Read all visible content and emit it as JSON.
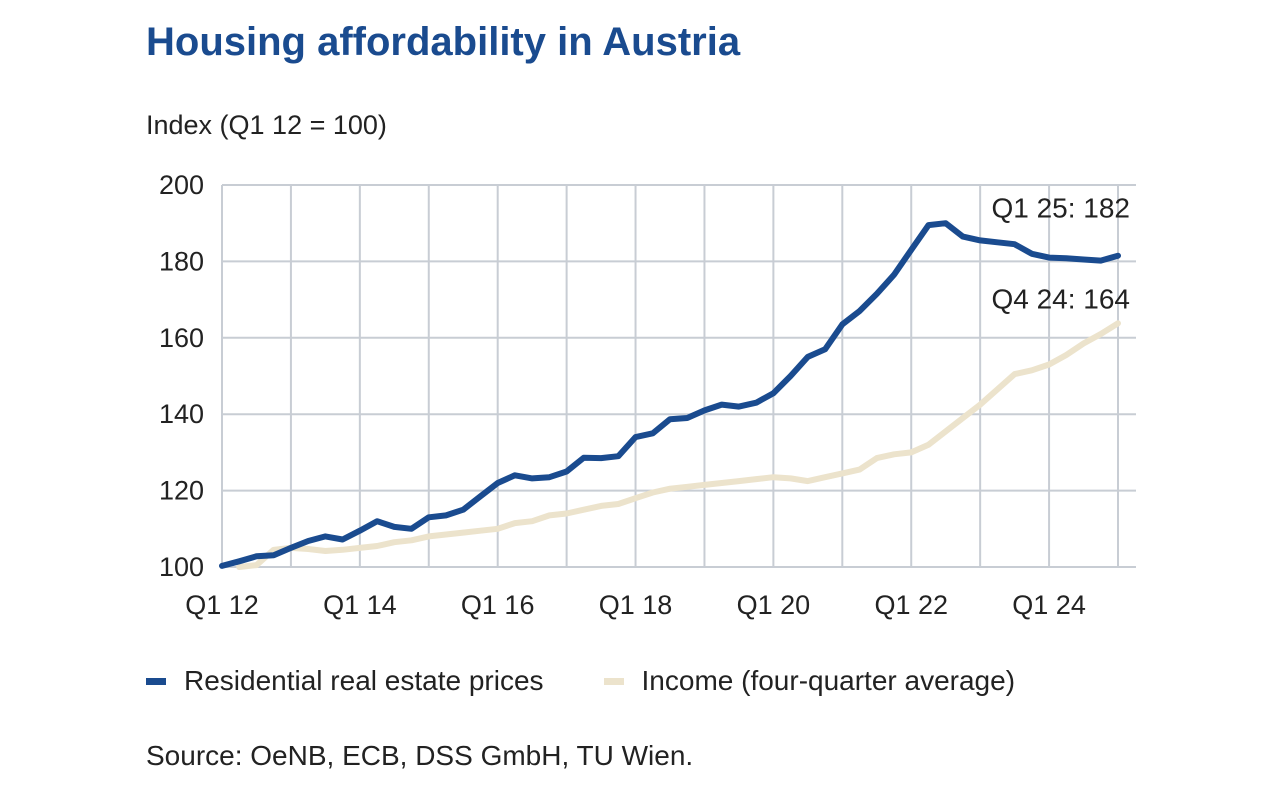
{
  "colors": {
    "title": "#1a4b8f",
    "grid": "#c8cdd4",
    "text": "#222222"
  },
  "chart_data": {
    "type": "line",
    "title": "Housing affordability in Austria",
    "ylabel": "Index (Q1 12 = 100)",
    "xlabel": "",
    "ylim": [
      100,
      200
    ],
    "yticks": [
      100,
      120,
      140,
      160,
      180,
      200
    ],
    "x_count": 53,
    "xticks": [
      {
        "i": 0,
        "label": "Q1 12"
      },
      {
        "i": 8,
        "label": "Q1 14"
      },
      {
        "i": 16,
        "label": "Q1 16"
      },
      {
        "i": 24,
        "label": "Q1 18"
      },
      {
        "i": 32,
        "label": "Q1 20"
      },
      {
        "i": 40,
        "label": "Q1 22"
      },
      {
        "i": 48,
        "label": "Q1 24"
      }
    ],
    "grid": true,
    "series": [
      {
        "name": "Residential real estate prices",
        "color": "#1a4b8f",
        "values": [
          100.3,
          101.5,
          102.8,
          103.1,
          105.0,
          106.8,
          108.0,
          107.2,
          109.5,
          112.0,
          110.5,
          110.0,
          113.0,
          113.5,
          115.0,
          118.5,
          122.0,
          124.0,
          123.2,
          123.5,
          125.0,
          128.6,
          128.5,
          129.0,
          134.0,
          135.0,
          138.7,
          139.0,
          141.0,
          142.5,
          142.0,
          143.0,
          145.5,
          150.0,
          155.0,
          157.0,
          163.5,
          167.0,
          171.5,
          176.5,
          183.0,
          189.5,
          190.0,
          186.5,
          185.5,
          185.0,
          184.5,
          182.0,
          181.0,
          180.8,
          180.5,
          180.2,
          181.5
        ]
      },
      {
        "name": "Income (four-quarter average)",
        "color": "#ece3cc",
        "values": [
          null,
          100.0,
          100.5,
          104.5,
          105.0,
          104.7,
          104.2,
          104.5,
          105.0,
          105.5,
          106.5,
          107.0,
          108.0,
          108.5,
          109.0,
          109.5,
          110.0,
          111.5,
          112.0,
          113.5,
          114.0,
          115.0,
          116.0,
          116.5,
          118.0,
          119.5,
          120.5,
          121.0,
          121.5,
          122.0,
          122.5,
          123.0,
          123.5,
          123.2,
          122.5,
          123.5,
          124.5,
          125.5,
          128.5,
          129.5,
          130.0,
          132.0,
          135.5,
          139.0,
          142.5,
          146.5,
          150.5,
          151.5,
          153.0,
          155.5,
          158.5,
          161.0,
          163.8
        ]
      }
    ],
    "annotations": [
      {
        "text": "Q1 25: 182",
        "series": 0
      },
      {
        "text": "Q4 24: 164",
        "series": 1
      }
    ]
  },
  "legend": {
    "items": [
      {
        "label": "Residential real estate prices",
        "color": "#1a4b8f"
      },
      {
        "label": "Income (four-quarter average)",
        "color": "#ece3cc"
      }
    ]
  },
  "source": "Source: OeNB, ECB, DSS GmbH, TU Wien."
}
